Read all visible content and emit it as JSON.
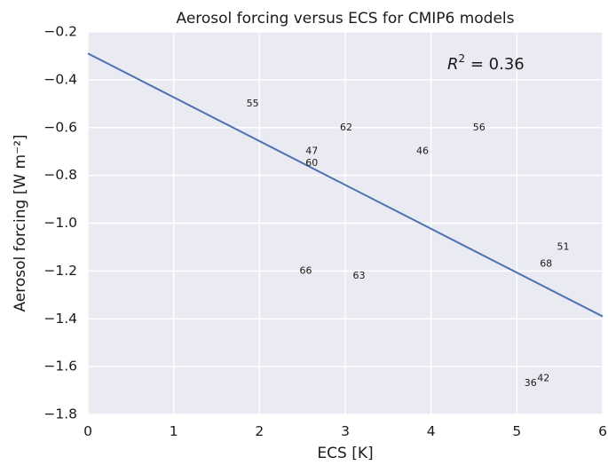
{
  "chart_data": {
    "type": "scatter",
    "title": "Aerosol forcing versus ECS for CMIP6 models",
    "xlabel": "ECS [K]",
    "ylabel": "Aerosol forcing [W m⁻²]",
    "xlim": [
      0,
      6
    ],
    "ylim": [
      -1.8,
      -0.2
    ],
    "x_ticks": [
      0,
      1,
      2,
      3,
      4,
      5,
      6
    ],
    "x_tick_labels": [
      "0",
      "1",
      "2",
      "3",
      "4",
      "5",
      "6"
    ],
    "y_ticks": [
      -0.2,
      -0.4,
      -0.6,
      -0.8,
      -1.0,
      -1.2,
      -1.4,
      -1.6,
      -1.8
    ],
    "y_tick_labels": [
      "−0.2",
      "−0.4",
      "−0.6",
      "−0.8",
      "−1.0",
      "−1.2",
      "−1.4",
      "−1.6",
      "−1.8"
    ],
    "grid": true,
    "points": [
      {
        "label": "55",
        "x": 1.92,
        "y": -0.5
      },
      {
        "label": "62",
        "x": 3.01,
        "y": -0.6
      },
      {
        "label": "56",
        "x": 4.56,
        "y": -0.6
      },
      {
        "label": "47",
        "x": 2.61,
        "y": -0.7
      },
      {
        "label": "46",
        "x": 3.9,
        "y": -0.7
      },
      {
        "label": "60",
        "x": 2.61,
        "y": -0.75
      },
      {
        "label": "51",
        "x": 5.54,
        "y": -1.1
      },
      {
        "label": "68",
        "x": 5.34,
        "y": -1.17
      },
      {
        "label": "66",
        "x": 2.54,
        "y": -1.2
      },
      {
        "label": "63",
        "x": 3.16,
        "y": -1.22
      },
      {
        "label": "36",
        "x": 5.16,
        "y": -1.67
      },
      {
        "label": "42",
        "x": 5.31,
        "y": -1.65
      }
    ],
    "fit_line": {
      "x": [
        0,
        6
      ],
      "y": [
        -0.29,
        -1.39
      ],
      "color": "#4c72b0"
    },
    "annotation": {
      "r2_label": "R",
      "r2_exp": "2",
      "r2_value": " = 0.36"
    },
    "colors": {
      "plot_background": "#eaeaf2",
      "grid": "#ffffff",
      "line": "#4c72b0"
    }
  }
}
